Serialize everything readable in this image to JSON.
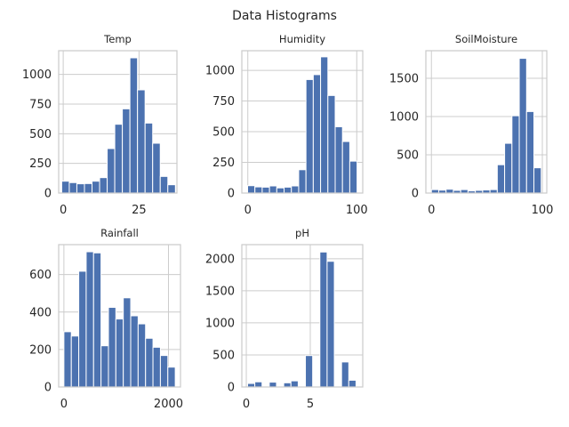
{
  "figure": {
    "title": "Data Histograms"
  },
  "chart_data": [
    {
      "type": "bar",
      "title": "Temp",
      "bin_start": -0.5,
      "bin_width": 2.5,
      "values": [
        100,
        88,
        78,
        80,
        100,
        130,
        375,
        580,
        710,
        1140,
        870,
        590,
        420,
        140,
        70
      ],
      "xlim": [
        -1.5,
        37.5
      ],
      "ylim": [
        0,
        1200
      ],
      "xticks": [
        0,
        25
      ],
      "yticks": [
        0,
        250,
        500,
        750,
        1000
      ]
    },
    {
      "type": "bar",
      "title": "Humidity",
      "bin_start": -0.2,
      "bin_width": 6.7,
      "values": [
        60,
        50,
        48,
        58,
        42,
        48,
        58,
        190,
        925,
        965,
        1110,
        795,
        540,
        420,
        260
      ],
      "xlim": [
        -5.5,
        105.5
      ],
      "ylim": [
        0,
        1160
      ],
      "xticks": [
        0,
        100
      ],
      "yticks": [
        0,
        250,
        500,
        750,
        1000
      ]
    },
    {
      "type": "bar",
      "title": "SoilMoisture",
      "bin_start": 0,
      "bin_width": 6.6,
      "values": [
        45,
        38,
        50,
        35,
        45,
        28,
        35,
        40,
        45,
        370,
        650,
        1010,
        1760,
        1065,
        330
      ],
      "xlim": [
        -5,
        104
      ],
      "ylim": [
        0,
        1860
      ],
      "xticks": [
        0,
        100
      ],
      "yticks": [
        0,
        500,
        1000,
        1500
      ]
    },
    {
      "type": "bar",
      "title": "Rainfall",
      "bin_start": 0,
      "bin_width": 142,
      "values": [
        295,
        272,
        618,
        722,
        716,
        220,
        425,
        363,
        476,
        380,
        337,
        260,
        212,
        168,
        106
      ],
      "xlim": [
        -100,
        2230
      ],
      "ylim": [
        0,
        760
      ],
      "xticks": [
        0,
        2000
      ],
      "yticks": [
        0,
        200,
        400,
        600
      ]
    },
    {
      "type": "bar",
      "title": "pH",
      "bin_start": 0.1,
      "bin_width": 0.565,
      "values": [
        55,
        80,
        0,
        75,
        0,
        65,
        95,
        0,
        490,
        0,
        2105,
        1960,
        0,
        390,
        105
      ],
      "xlim": [
        -0.35,
        9.1
      ],
      "ylim": [
        0,
        2220
      ],
      "xticks": [
        0,
        5
      ],
      "yticks": [
        0,
        500,
        1000,
        1500,
        2000
      ]
    }
  ]
}
